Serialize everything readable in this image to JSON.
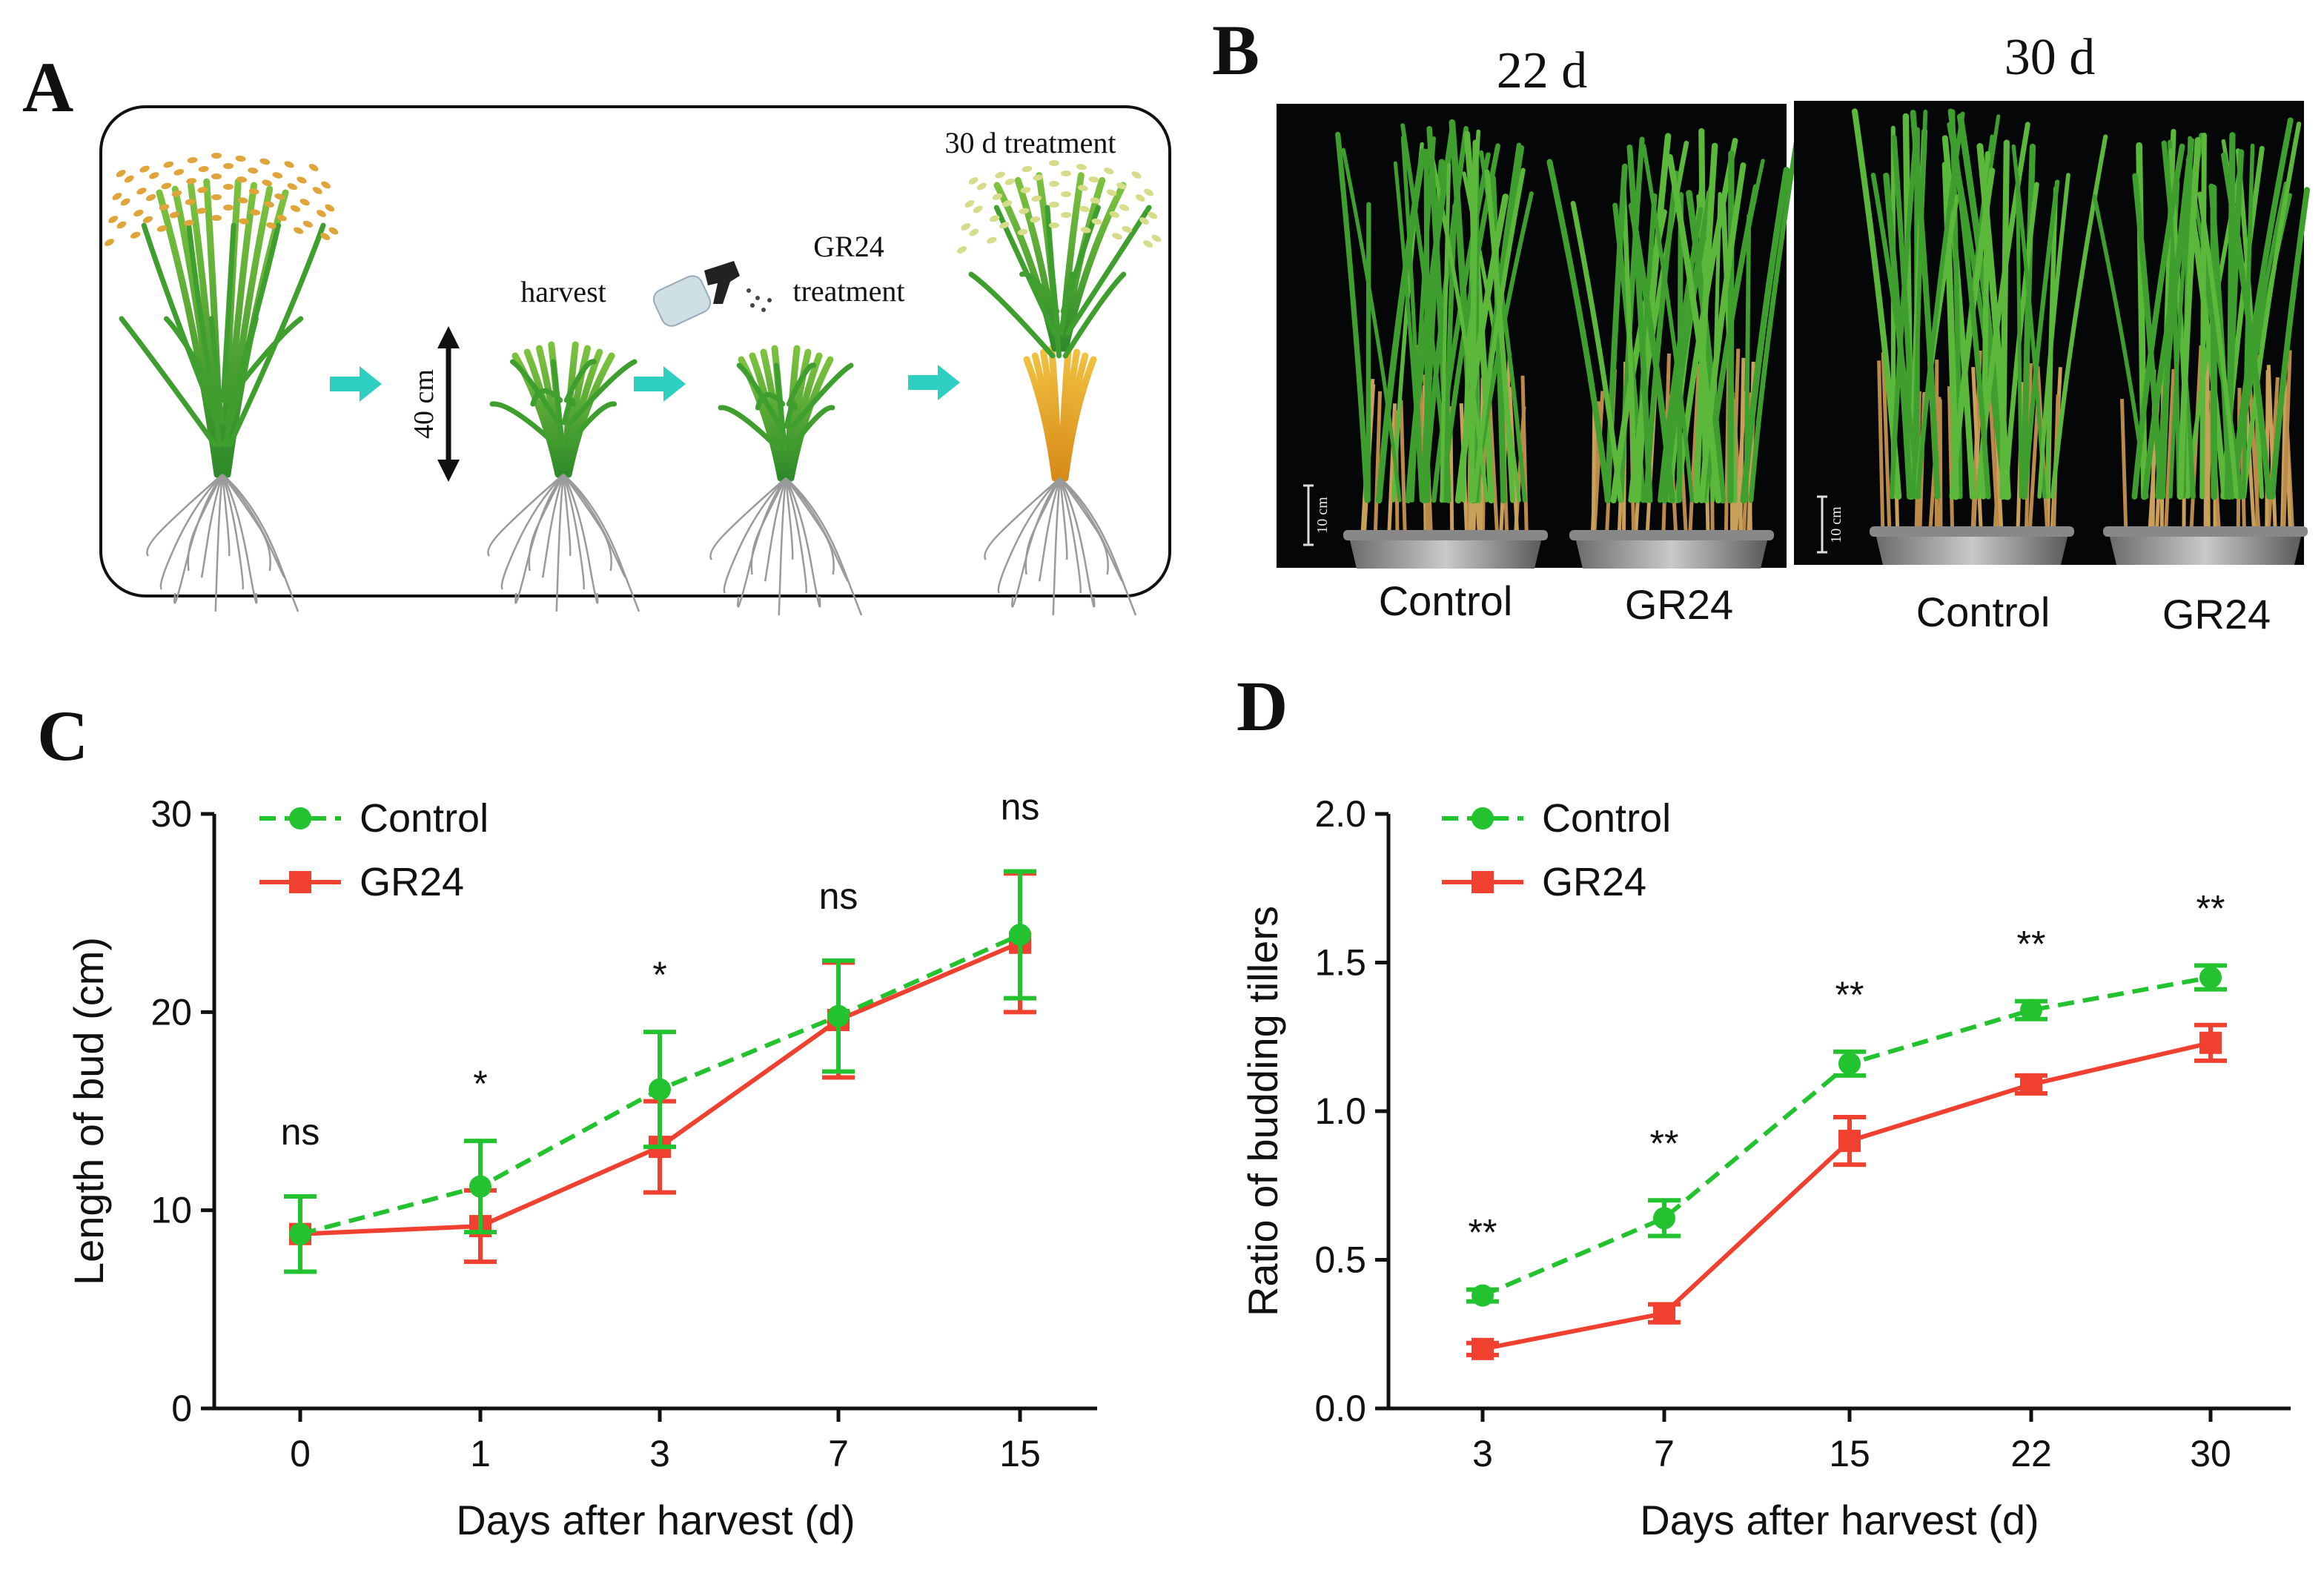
{
  "panels": {
    "a": {
      "letter": "A",
      "labels": {
        "harvest": "harvest",
        "height": "40 cm",
        "treatment_line1": "GR24",
        "treatment_line2": "treatment",
        "final": "30 d treatment"
      }
    },
    "b": {
      "letter": "B",
      "photo_titles": [
        "22 d",
        "30 d"
      ],
      "group_labels": [
        "Control",
        "GR24",
        "Control",
        "GR24"
      ],
      "scale_bar": "10 cm"
    },
    "c": {
      "letter": "C"
    },
    "d": {
      "letter": "D"
    }
  },
  "colors": {
    "control": "#22c32e",
    "gr24": "#f0402f",
    "photo_bg": "#050608",
    "plant_green": "#3f9f2e",
    "plant_straw": "#c9a05a",
    "arrow": "#2ecfc0",
    "grain": "#e0a53a"
  },
  "chart_data": [
    {
      "id": "c",
      "type": "line",
      "title": "",
      "xlabel": "Days after harvest (d)",
      "ylabel": "Length of bud (cm)",
      "categories": [
        "0",
        "1",
        "3",
        "7",
        "15"
      ],
      "ylim": [
        0,
        30
      ],
      "yticks": [
        "0",
        "10",
        "20",
        "30"
      ],
      "series": [
        {
          "name": "Control",
          "style": "dashed-circle",
          "values": [
            8.8,
            11.2,
            16.1,
            19.8,
            23.9
          ],
          "errors": [
            1.9,
            2.3,
            2.9,
            2.8,
            3.2
          ]
        },
        {
          "name": "GR24",
          "style": "solid-square",
          "values": [
            8.8,
            9.2,
            13.2,
            19.6,
            23.5
          ],
          "errors": [
            1.9,
            1.8,
            2.3,
            2.9,
            3.5
          ]
        }
      ],
      "significance": [
        "ns",
        "*",
        "*",
        "ns",
        "ns"
      ],
      "legend": "top-left"
    },
    {
      "id": "d",
      "type": "line",
      "title": "",
      "xlabel": "Days after harvest (d)",
      "ylabel": "Ratio of budding tillers",
      "categories": [
        "3",
        "7",
        "15",
        "22",
        "30"
      ],
      "ylim": [
        0,
        2.0
      ],
      "yticks": [
        "0.0",
        "0.5",
        "1.0",
        "1.5",
        "2.0"
      ],
      "series": [
        {
          "name": "Control",
          "style": "dashed-circle",
          "values": [
            0.38,
            0.64,
            1.16,
            1.34,
            1.45
          ],
          "errors": [
            0.02,
            0.06,
            0.04,
            0.03,
            0.04
          ]
        },
        {
          "name": "GR24",
          "style": "solid-square",
          "values": [
            0.2,
            0.32,
            0.9,
            1.09,
            1.23
          ],
          "errors": [
            0.02,
            0.03,
            0.08,
            0.03,
            0.06
          ]
        }
      ],
      "significance": [
        "**",
        "**",
        "**",
        "**",
        "**"
      ],
      "legend": "top-left"
    }
  ]
}
